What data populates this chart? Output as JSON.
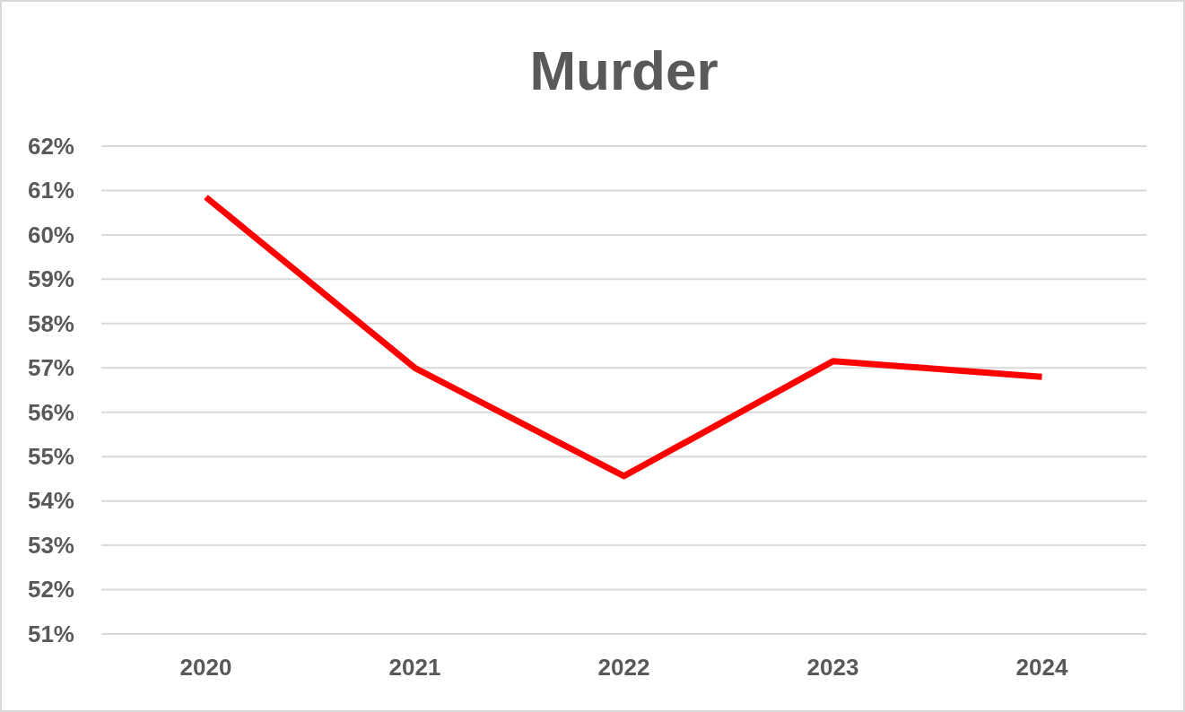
{
  "chart_data": {
    "type": "line",
    "title": "Murder",
    "categories": [
      "2020",
      "2021",
      "2022",
      "2023",
      "2024"
    ],
    "series": [
      {
        "color": "#ff0000",
        "values": [
          60.85,
          57.0,
          54.56,
          57.15,
          56.8
        ]
      }
    ],
    "ylim": [
      51,
      62
    ],
    "yticks": [
      {
        "value": 51,
        "label": "51%"
      },
      {
        "value": 52,
        "label": "52%"
      },
      {
        "value": 53,
        "label": "53%"
      },
      {
        "value": 54,
        "label": "54%"
      },
      {
        "value": 55,
        "label": "55%"
      },
      {
        "value": 56,
        "label": "56%"
      },
      {
        "value": 57,
        "label": "57%"
      },
      {
        "value": 58,
        "label": "58%"
      },
      {
        "value": 59,
        "label": "59%"
      },
      {
        "value": 60,
        "label": "60%"
      },
      {
        "value": 61,
        "label": "61%"
      },
      {
        "value": 62,
        "label": "62%"
      }
    ],
    "grid": "y",
    "marker": "none",
    "line_style": "solid"
  }
}
